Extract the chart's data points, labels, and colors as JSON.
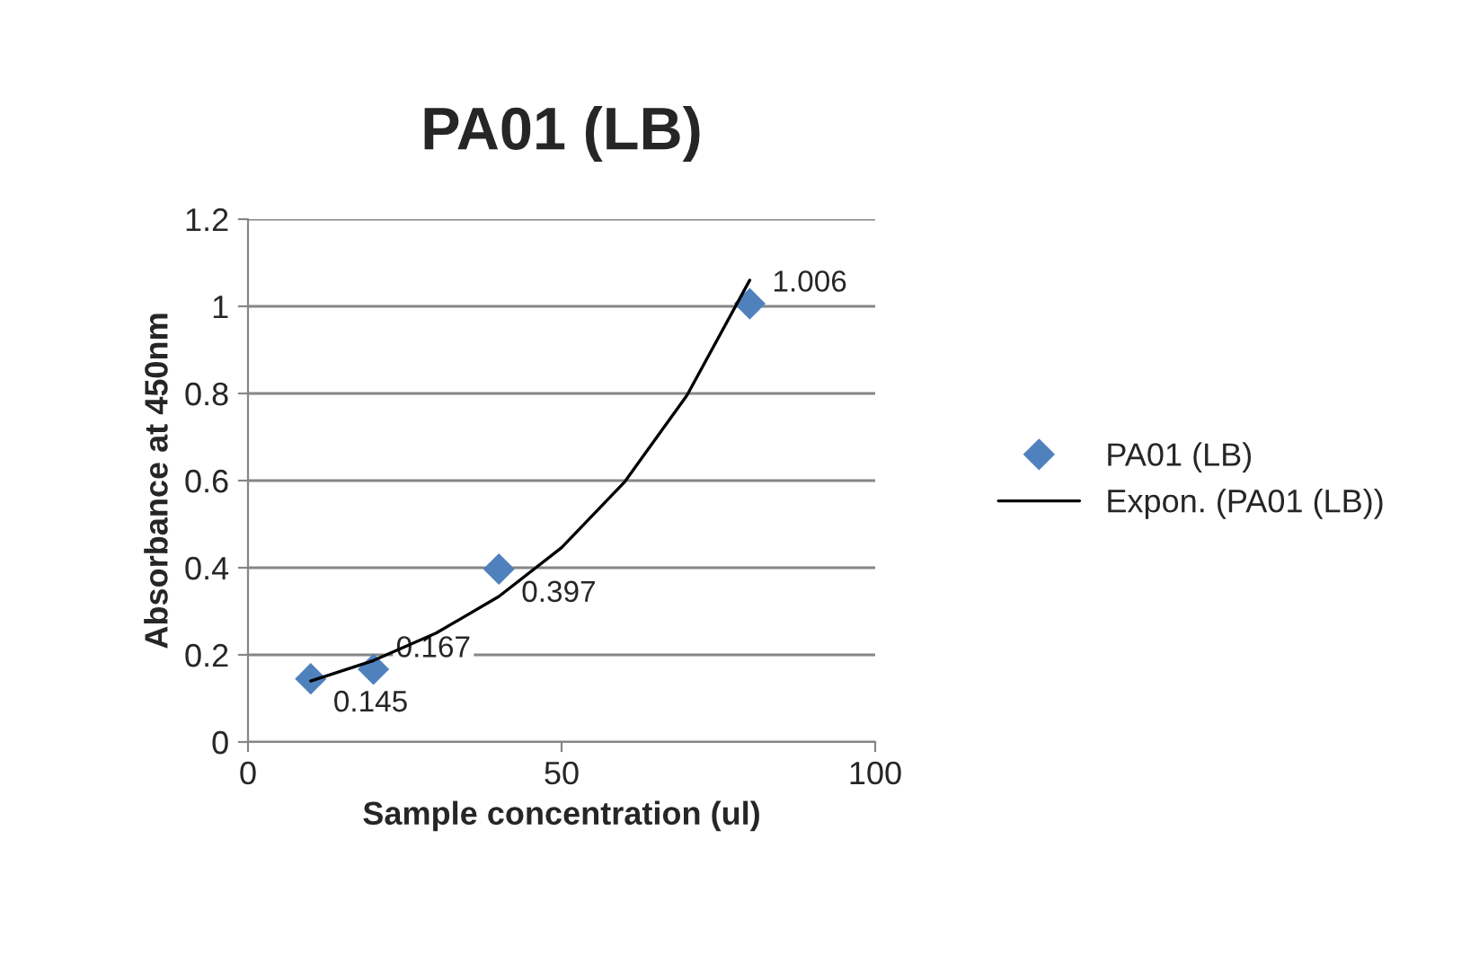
{
  "chart_data": {
    "type": "scatter",
    "title": "PA01 (LB)",
    "xlabel": "Sample concentration (ul)",
    "ylabel": "Absorbance at 450nm",
    "series": [
      {
        "name": "PA01 (LB)",
        "color": "#4f81bd",
        "marker": "diamond",
        "x": [
          10,
          20,
          40,
          80
        ],
        "values": [
          0.145,
          0.167,
          0.397,
          1.006
        ],
        "data_labels": true
      },
      {
        "name": "Expon. (PA01 (LB))",
        "type": "line",
        "color": "#000000",
        "marker": "none",
        "line_style": "solid",
        "x": [
          10,
          20,
          30,
          40,
          50,
          60,
          70,
          80
        ],
        "values": [
          0.14,
          0.187,
          0.25,
          0.334,
          0.446,
          0.596,
          0.796,
          1.06
        ]
      }
    ],
    "xlim": [
      0,
      100
    ],
    "xticks": [
      0,
      50,
      100
    ],
    "ylim": [
      0,
      1.2
    ],
    "yticks": [
      0,
      0.2,
      0.4,
      0.6,
      0.8,
      1,
      1.2
    ],
    "grid": "y",
    "legend": "right"
  }
}
